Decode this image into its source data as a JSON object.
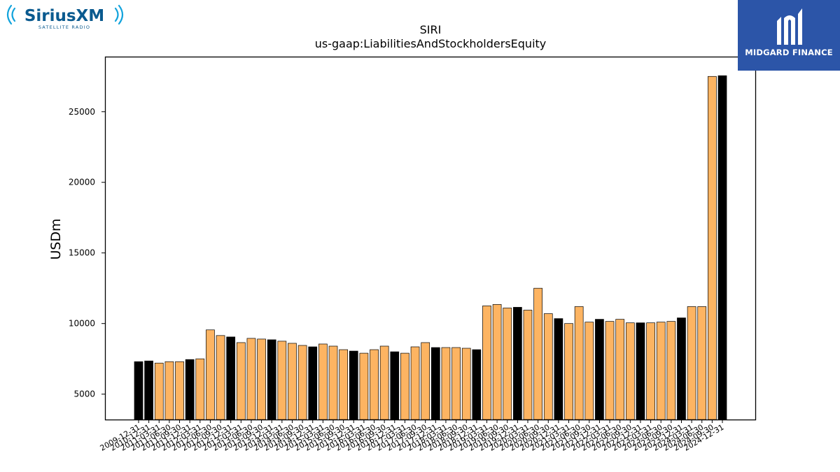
{
  "logos": {
    "left_brand": "SiriusXM",
    "left_tagline": "SATELLITE RADIO",
    "right_brand": "MIDGARD FINANCE"
  },
  "colors": {
    "bar_orange": "#fdb462",
    "bar_black": "#000000",
    "logo_blue": "#2c55a8",
    "sirius_blue": "#0a5a8f",
    "sirius_cyan": "#12a3dc"
  },
  "chart_data": {
    "type": "bar",
    "title": "SIRI",
    "subtitle": "us-gaap:LiabilitiesAndStockholdersEquity",
    "xlabel": "",
    "ylabel": "USDm",
    "ylim": [
      3200,
      28900
    ],
    "yticks": [
      5000,
      10000,
      15000,
      20000,
      25000
    ],
    "grid": false,
    "categories": [
      "2009-12-31",
      "2010-12-31",
      "2011-03-31",
      "2011-06-30",
      "2011-09-30",
      "2011-12-31",
      "2012-03-31",
      "2012-06-30",
      "2012-09-30",
      "2012-12-31",
      "2013-03-31",
      "2013-06-30",
      "2013-09-30",
      "2013-12-31",
      "2014-03-31",
      "2014-06-30",
      "2014-09-30",
      "2014-12-31",
      "2015-03-31",
      "2015-06-30",
      "2015-09-30",
      "2015-12-31",
      "2016-03-31",
      "2016-06-30",
      "2016-09-30",
      "2016-12-31",
      "2017-03-31",
      "2017-06-30",
      "2017-09-30",
      "2017-12-31",
      "2018-03-31",
      "2018-06-30",
      "2018-09-30",
      "2018-12-31",
      "2019-03-31",
      "2019-06-30",
      "2019-09-30",
      "2019-12-31",
      "2020-03-31",
      "2020-06-30",
      "2020-09-30",
      "2020-12-31",
      "2021-03-31",
      "2021-06-30",
      "2021-09-30",
      "2021-12-31",
      "2022-03-31",
      "2022-06-30",
      "2022-09-30",
      "2022-12-31",
      "2023-03-31",
      "2023-06-30",
      "2023-09-30",
      "2023-12-31",
      "2024-03-31",
      "2024-06-30",
      "2024-09-30",
      "2024-12-31"
    ],
    "values": [
      7300,
      7350,
      7200,
      7300,
      7300,
      7450,
      7500,
      9550,
      9150,
      9050,
      8650,
      8950,
      8900,
      8850,
      8750,
      8600,
      8450,
      8350,
      8550,
      8400,
      8150,
      8050,
      7900,
      8150,
      8400,
      8000,
      7900,
      8350,
      8650,
      8300,
      8300,
      8300,
      8250,
      8150,
      11250,
      11350,
      11100,
      11150,
      10950,
      12500,
      10700,
      10350,
      10000,
      11200,
      10100,
      10300,
      10150,
      10300,
      10050,
      10050,
      10050,
      10100,
      10150,
      10400,
      11200,
      11200,
      27500,
      27550
    ],
    "bar_kind": [
      "black",
      "black",
      "orange",
      "orange",
      "orange",
      "black",
      "orange",
      "orange",
      "orange",
      "black",
      "orange",
      "orange",
      "orange",
      "black",
      "orange",
      "orange",
      "orange",
      "black",
      "orange",
      "orange",
      "orange",
      "black",
      "orange",
      "orange",
      "orange",
      "black",
      "orange",
      "orange",
      "orange",
      "black",
      "orange",
      "orange",
      "orange",
      "black",
      "orange",
      "orange",
      "orange",
      "black",
      "orange",
      "orange",
      "orange",
      "black",
      "orange",
      "orange",
      "orange",
      "black",
      "orange",
      "orange",
      "orange",
      "black",
      "orange",
      "orange",
      "orange",
      "black",
      "orange",
      "orange",
      "orange",
      "black"
    ]
  }
}
